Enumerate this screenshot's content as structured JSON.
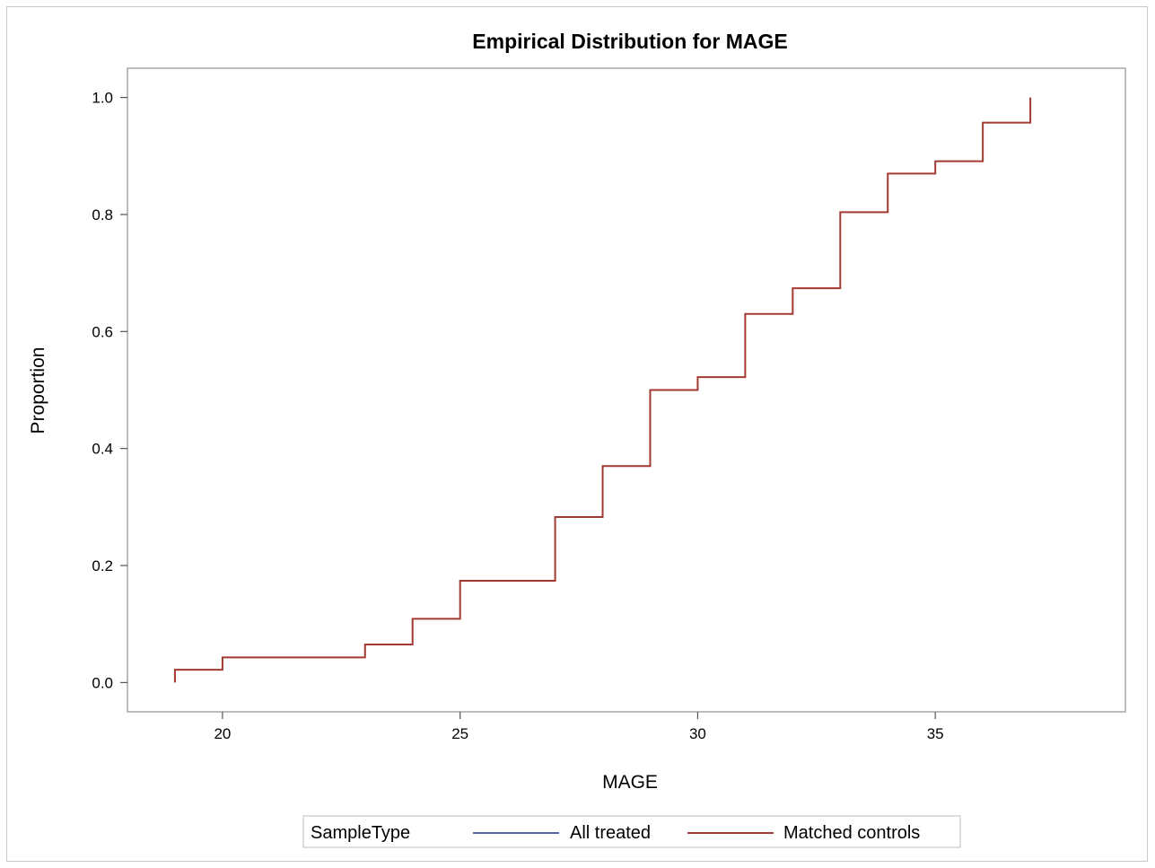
{
  "chart_data": {
    "type": "line",
    "title": "Empirical Distribution for MAGE",
    "xlabel": "MAGE",
    "ylabel": "Proportion",
    "xlim": [
      18,
      39
    ],
    "ylim": [
      -0.05,
      1.05
    ],
    "xticks": [
      20,
      25,
      30,
      35
    ],
    "xtick_labels": [
      "20",
      "25",
      "30",
      "35"
    ],
    "yticks": [
      0.0,
      0.2,
      0.4,
      0.6,
      0.8,
      1.0
    ],
    "ytick_labels": [
      "0.0",
      "0.2",
      "0.4",
      "0.6",
      "0.8",
      "1.0"
    ],
    "grid": false,
    "legend": {
      "title": "SampleType",
      "placement": "bottom",
      "entries": [
        {
          "name": "All treated",
          "color": "#5566a8"
        },
        {
          "name": "Matched controls",
          "color": "#a23a32"
        }
      ]
    },
    "series": [
      {
        "name": "Matched controls",
        "color": "#a23a32",
        "step": "post",
        "x": [
          19,
          20,
          23,
          24,
          25,
          27,
          28,
          29,
          30,
          31,
          32,
          33,
          34,
          35,
          36,
          37
        ],
        "y": [
          0.022,
          0.043,
          0.065,
          0.109,
          0.174,
          0.283,
          0.37,
          0.5,
          0.522,
          0.63,
          0.674,
          0.804,
          0.87,
          0.891,
          0.957,
          1.0
        ]
      }
    ]
  }
}
